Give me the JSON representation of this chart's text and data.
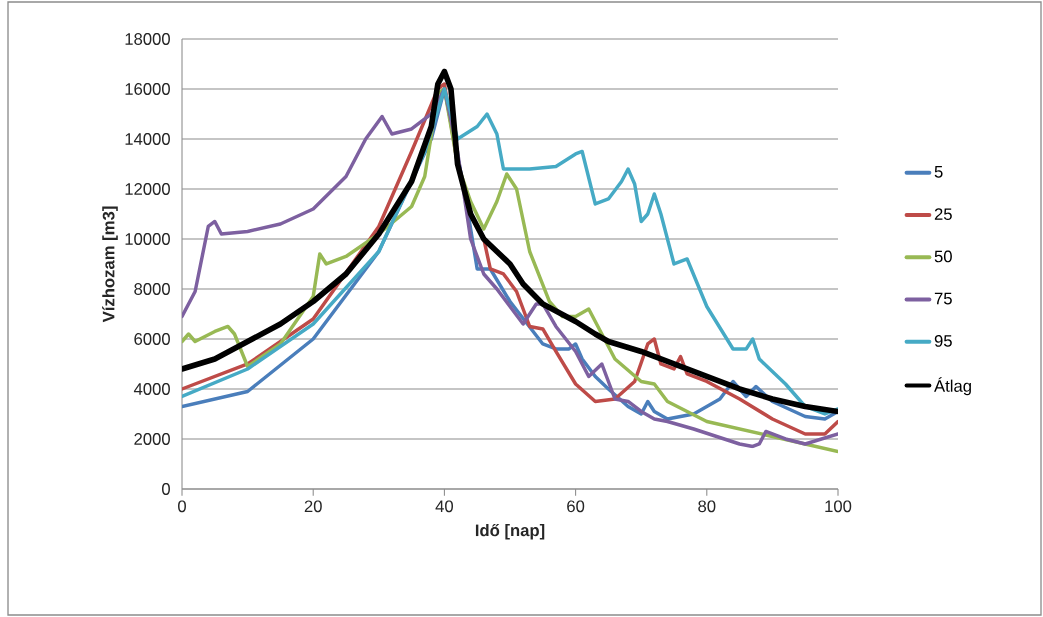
{
  "chart_data": {
    "type": "line",
    "xlabel": "Idő [nap]",
    "ylabel": "Vízhozam [m3]",
    "xlim": [
      0,
      100
    ],
    "xticks": [
      0,
      20,
      40,
      60,
      80,
      100
    ],
    "ylim": [
      0,
      18000
    ],
    "yticks": [
      0,
      2000,
      4000,
      6000,
      8000,
      10000,
      12000,
      14000,
      16000,
      18000
    ],
    "grid": "y",
    "legend": "right",
    "marker": "none",
    "line_style": "solid",
    "series": [
      {
        "name": "5",
        "color": "#4a7ebb",
        "x": [
          0,
          10,
          20,
          30,
          38,
          40,
          43,
          45,
          47,
          50,
          55,
          57,
          59,
          60,
          61,
          63,
          65,
          68,
          70,
          71,
          72,
          74,
          78,
          82,
          84,
          86,
          87.5,
          90,
          95,
          98,
          100
        ],
        "values": [
          3300,
          3900,
          6000,
          9500,
          14000,
          16000,
          12000,
          8800,
          8800,
          7500,
          5800,
          5600,
          5600,
          5800,
          5200,
          4500,
          4000,
          3300,
          3000,
          3500,
          3100,
          2800,
          3000,
          3600,
          4300,
          3700,
          4100,
          3500,
          2900,
          2800,
          3100
        ]
      },
      {
        "name": "25",
        "color": "#be4b48",
        "x": [
          0,
          10,
          20,
          30,
          35,
          39,
          40,
          42,
          44,
          46,
          47,
          49,
          51,
          53,
          55,
          57,
          60,
          63,
          66,
          69,
          71,
          72,
          73,
          75,
          76,
          77,
          80,
          85,
          90,
          95,
          98,
          100
        ],
        "values": [
          4000,
          5000,
          6800,
          10500,
          13500,
          16000,
          16200,
          13000,
          11000,
          10000,
          8800,
          8600,
          7900,
          6500,
          6400,
          5500,
          4200,
          3500,
          3600,
          4300,
          5800,
          6000,
          5000,
          4800,
          5300,
          4600,
          4300,
          3600,
          2800,
          2200,
          2200,
          2700
        ]
      },
      {
        "name": "50",
        "color": "#98b954",
        "x": [
          0,
          1,
          2,
          5,
          7,
          8,
          10,
          15,
          20,
          21,
          22,
          25,
          30,
          35,
          37,
          39,
          40,
          42,
          44,
          46,
          48,
          49.5,
          51,
          53,
          56,
          58,
          60,
          62,
          63,
          66,
          70,
          72,
          74,
          80,
          90,
          100
        ],
        "values": [
          5900,
          6200,
          5900,
          6300,
          6500,
          6200,
          4900,
          5800,
          7700,
          9400,
          9000,
          9300,
          10200,
          11300,
          12500,
          15800,
          16000,
          13000,
          11500,
          10400,
          11500,
          12600,
          12000,
          9500,
          7500,
          6900,
          6900,
          7200,
          6700,
          5200,
          4300,
          4200,
          3500,
          2700,
          2100,
          1500
        ]
      },
      {
        "name": "75",
        "color": "#7d60a0",
        "x": [
          0,
          2,
          4,
          5,
          6,
          10,
          15,
          20,
          25,
          28,
          30.5,
          32,
          35,
          38,
          40,
          42,
          44,
          46,
          48,
          50,
          52,
          54,
          55,
          57,
          60,
          62,
          64,
          66,
          68,
          70,
          72,
          74,
          78,
          85,
          87,
          88,
          89,
          92,
          95,
          100
        ],
        "values": [
          6900,
          7900,
          10500,
          10700,
          10200,
          10300,
          10600,
          11200,
          12500,
          14000,
          14900,
          14200,
          14400,
          15000,
          16000,
          13500,
          10000,
          8600,
          8000,
          7300,
          6600,
          7400,
          7400,
          6500,
          5500,
          4500,
          5000,
          3600,
          3500,
          3100,
          2800,
          2700,
          2400,
          1800,
          1700,
          1800,
          2300,
          2000,
          1800,
          2200
        ]
      },
      {
        "name": "95",
        "color": "#46aac5",
        "x": [
          0,
          10,
          20,
          30,
          37,
          40,
          42,
          45,
          46.5,
          48,
          49,
          53,
          57,
          60,
          61,
          63,
          65,
          67,
          68,
          69,
          70,
          71,
          72,
          73,
          75,
          77,
          80,
          84,
          86,
          87,
          88,
          92,
          95,
          98,
          100
        ],
        "values": [
          3700,
          4800,
          6600,
          9500,
          13500,
          16000,
          14000,
          14500,
          15000,
          14200,
          12800,
          12800,
          12900,
          13400,
          13500,
          11400,
          11600,
          12300,
          12800,
          12200,
          10700,
          11000,
          11800,
          11000,
          9000,
          9200,
          7300,
          5600,
          5600,
          6000,
          5200,
          4200,
          3300,
          3000,
          3200
        ]
      },
      {
        "name": "Átlag",
        "color": "#000000",
        "x": [
          0,
          5,
          10,
          15,
          20,
          25,
          30,
          35,
          38,
          39,
          40,
          41,
          42,
          44,
          46,
          48,
          50,
          52,
          55,
          60,
          63,
          65,
          70,
          75,
          80,
          85,
          90,
          95,
          100
        ],
        "values": [
          4800,
          5200,
          5900,
          6600,
          7500,
          8600,
          10200,
          12300,
          14500,
          16200,
          16700,
          16000,
          13000,
          11000,
          10000,
          9500,
          9000,
          8200,
          7400,
          6700,
          6200,
          5900,
          5500,
          5000,
          4500,
          4000,
          3600,
          3300,
          3100
        ]
      }
    ]
  }
}
